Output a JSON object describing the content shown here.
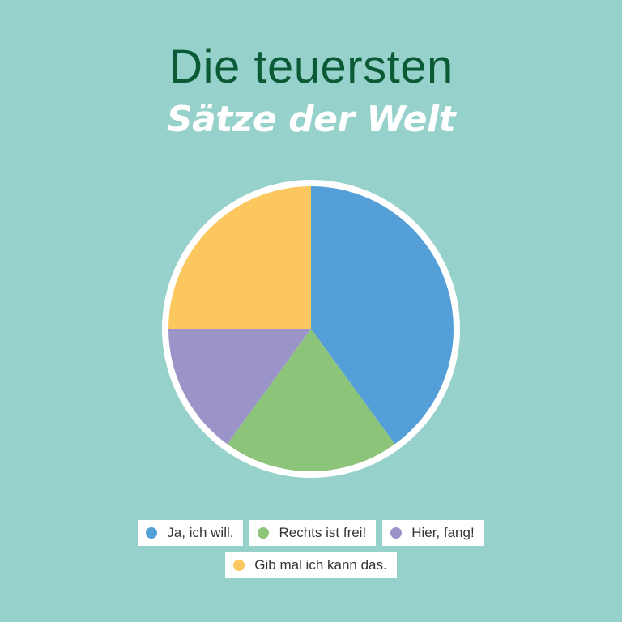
{
  "title": {
    "line1": "Die teuersten",
    "line2": "Sätze der Welt"
  },
  "chart_data": {
    "type": "pie",
    "title": "Die teuersten Sätze der Welt",
    "start_angle_deg": 0,
    "direction": "clockwise",
    "background_color": "#97d1cb",
    "outline_color": "#ffffff",
    "legend_position": "bottom-center",
    "slices": [
      {
        "label": "Ja, ich will.",
        "value": 40,
        "color": "#549fd8"
      },
      {
        "label": "Rechts ist frei!",
        "value": 20,
        "color": "#8cc47a"
      },
      {
        "label": "Hier, fang!",
        "value": 15,
        "color": "#9a94c8"
      },
      {
        "label": "Gib mal ich kann das.",
        "value": 25,
        "color": "#fdc75f"
      }
    ]
  }
}
